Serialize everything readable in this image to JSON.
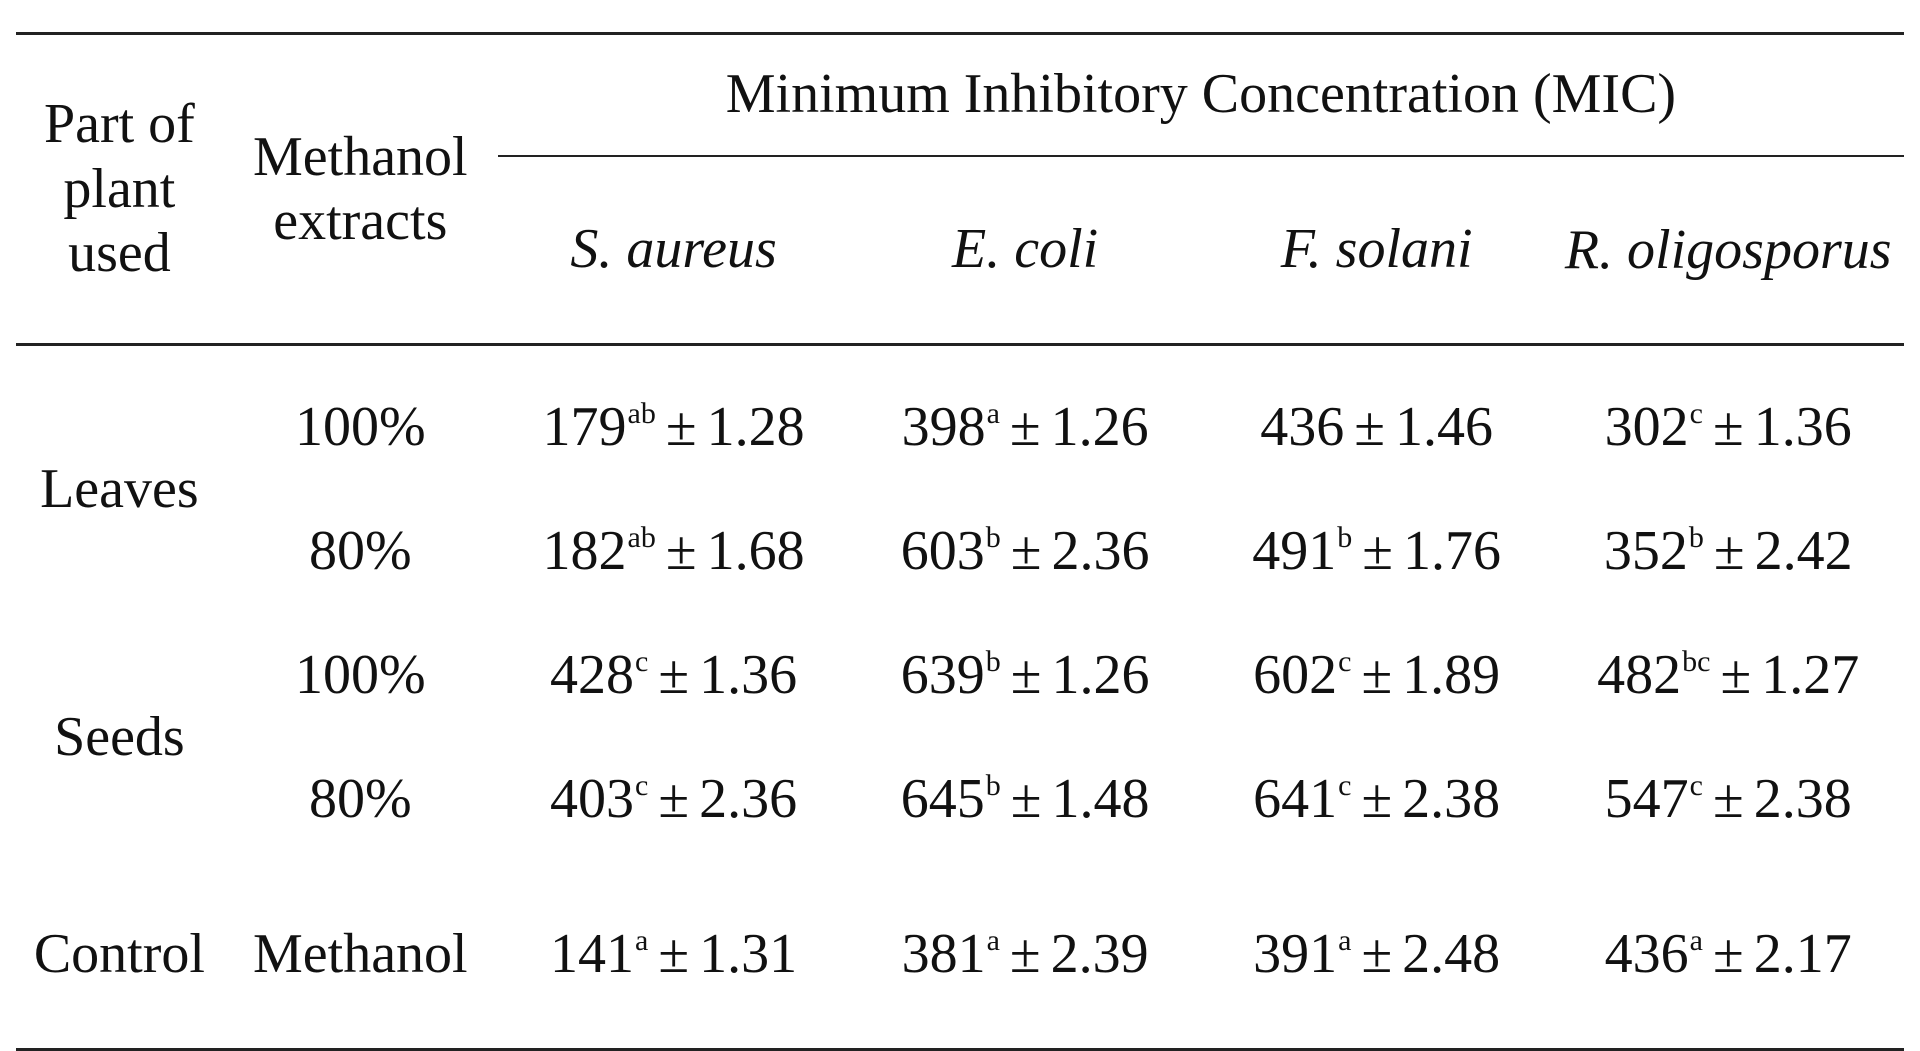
{
  "table": {
    "header": {
      "part_of_plant": "Part of plant used",
      "methanol_extracts": "Methanol extracts",
      "mic_title": "Minimum Inhibitory Concentration (MIC)",
      "organisms": [
        "S. aureus",
        "E. coli",
        "F. solani",
        "R. oligosporus"
      ]
    },
    "rows": [
      {
        "part": "Leaves",
        "extract": "100%",
        "cells": [
          {
            "value": "179",
            "sup": "ab",
            "pm": "±",
            "sd": "1.28"
          },
          {
            "value": "398",
            "sup": "a",
            "pm": "±",
            "sd": "1.26"
          },
          {
            "value": "436",
            "sup": "",
            "pm": "±",
            "sd": "1.46"
          },
          {
            "value": "302",
            "sup": "c",
            "pm": "±",
            "sd": "1.36"
          }
        ]
      },
      {
        "part": "",
        "extract": "80%",
        "cells": [
          {
            "value": "182",
            "sup": "ab",
            "pm": "±",
            "sd": "1.68"
          },
          {
            "value": "603",
            "sup": "b",
            "pm": "±",
            "sd": "2.36"
          },
          {
            "value": "491",
            "sup": "b",
            "pm": "±",
            "sd": "1.76"
          },
          {
            "value": "352",
            "sup": "b",
            "pm": "±",
            "sd": "2.42"
          }
        ]
      },
      {
        "part": "Seeds",
        "extract": "100%",
        "cells": [
          {
            "value": "428",
            "sup": "c",
            "pm": "±",
            "sd": "1.36"
          },
          {
            "value": "639",
            "sup": "b",
            "pm": "±",
            "sd": "1.26"
          },
          {
            "value": "602",
            "sup": "c",
            "pm": "±",
            "sd": "1.89"
          },
          {
            "value": "482",
            "sup": "bc",
            "pm": "±",
            "sd": "1.27"
          }
        ]
      },
      {
        "part": "",
        "extract": "80%",
        "cells": [
          {
            "value": "403",
            "sup": "c",
            "pm": "±",
            "sd": "2.36"
          },
          {
            "value": "645",
            "sup": "b",
            "pm": "±",
            "sd": "1.48"
          },
          {
            "value": "641",
            "sup": "c",
            "pm": "±",
            "sd": "2.38"
          },
          {
            "value": "547",
            "sup": "c",
            "pm": "±",
            "sd": "2.38"
          }
        ]
      },
      {
        "part": "Control",
        "extract": "Methanol",
        "cells": [
          {
            "value": "141",
            "sup": "a",
            "pm": "±",
            "sd": "1.31"
          },
          {
            "value": "381",
            "sup": "a",
            "pm": "±",
            "sd": "2.39"
          },
          {
            "value": "391",
            "sup": "a",
            "pm": "±",
            "sd": "2.48"
          },
          {
            "value": "436",
            "sup": "a",
            "pm": "±",
            "sd": "2.17"
          }
        ]
      }
    ]
  }
}
